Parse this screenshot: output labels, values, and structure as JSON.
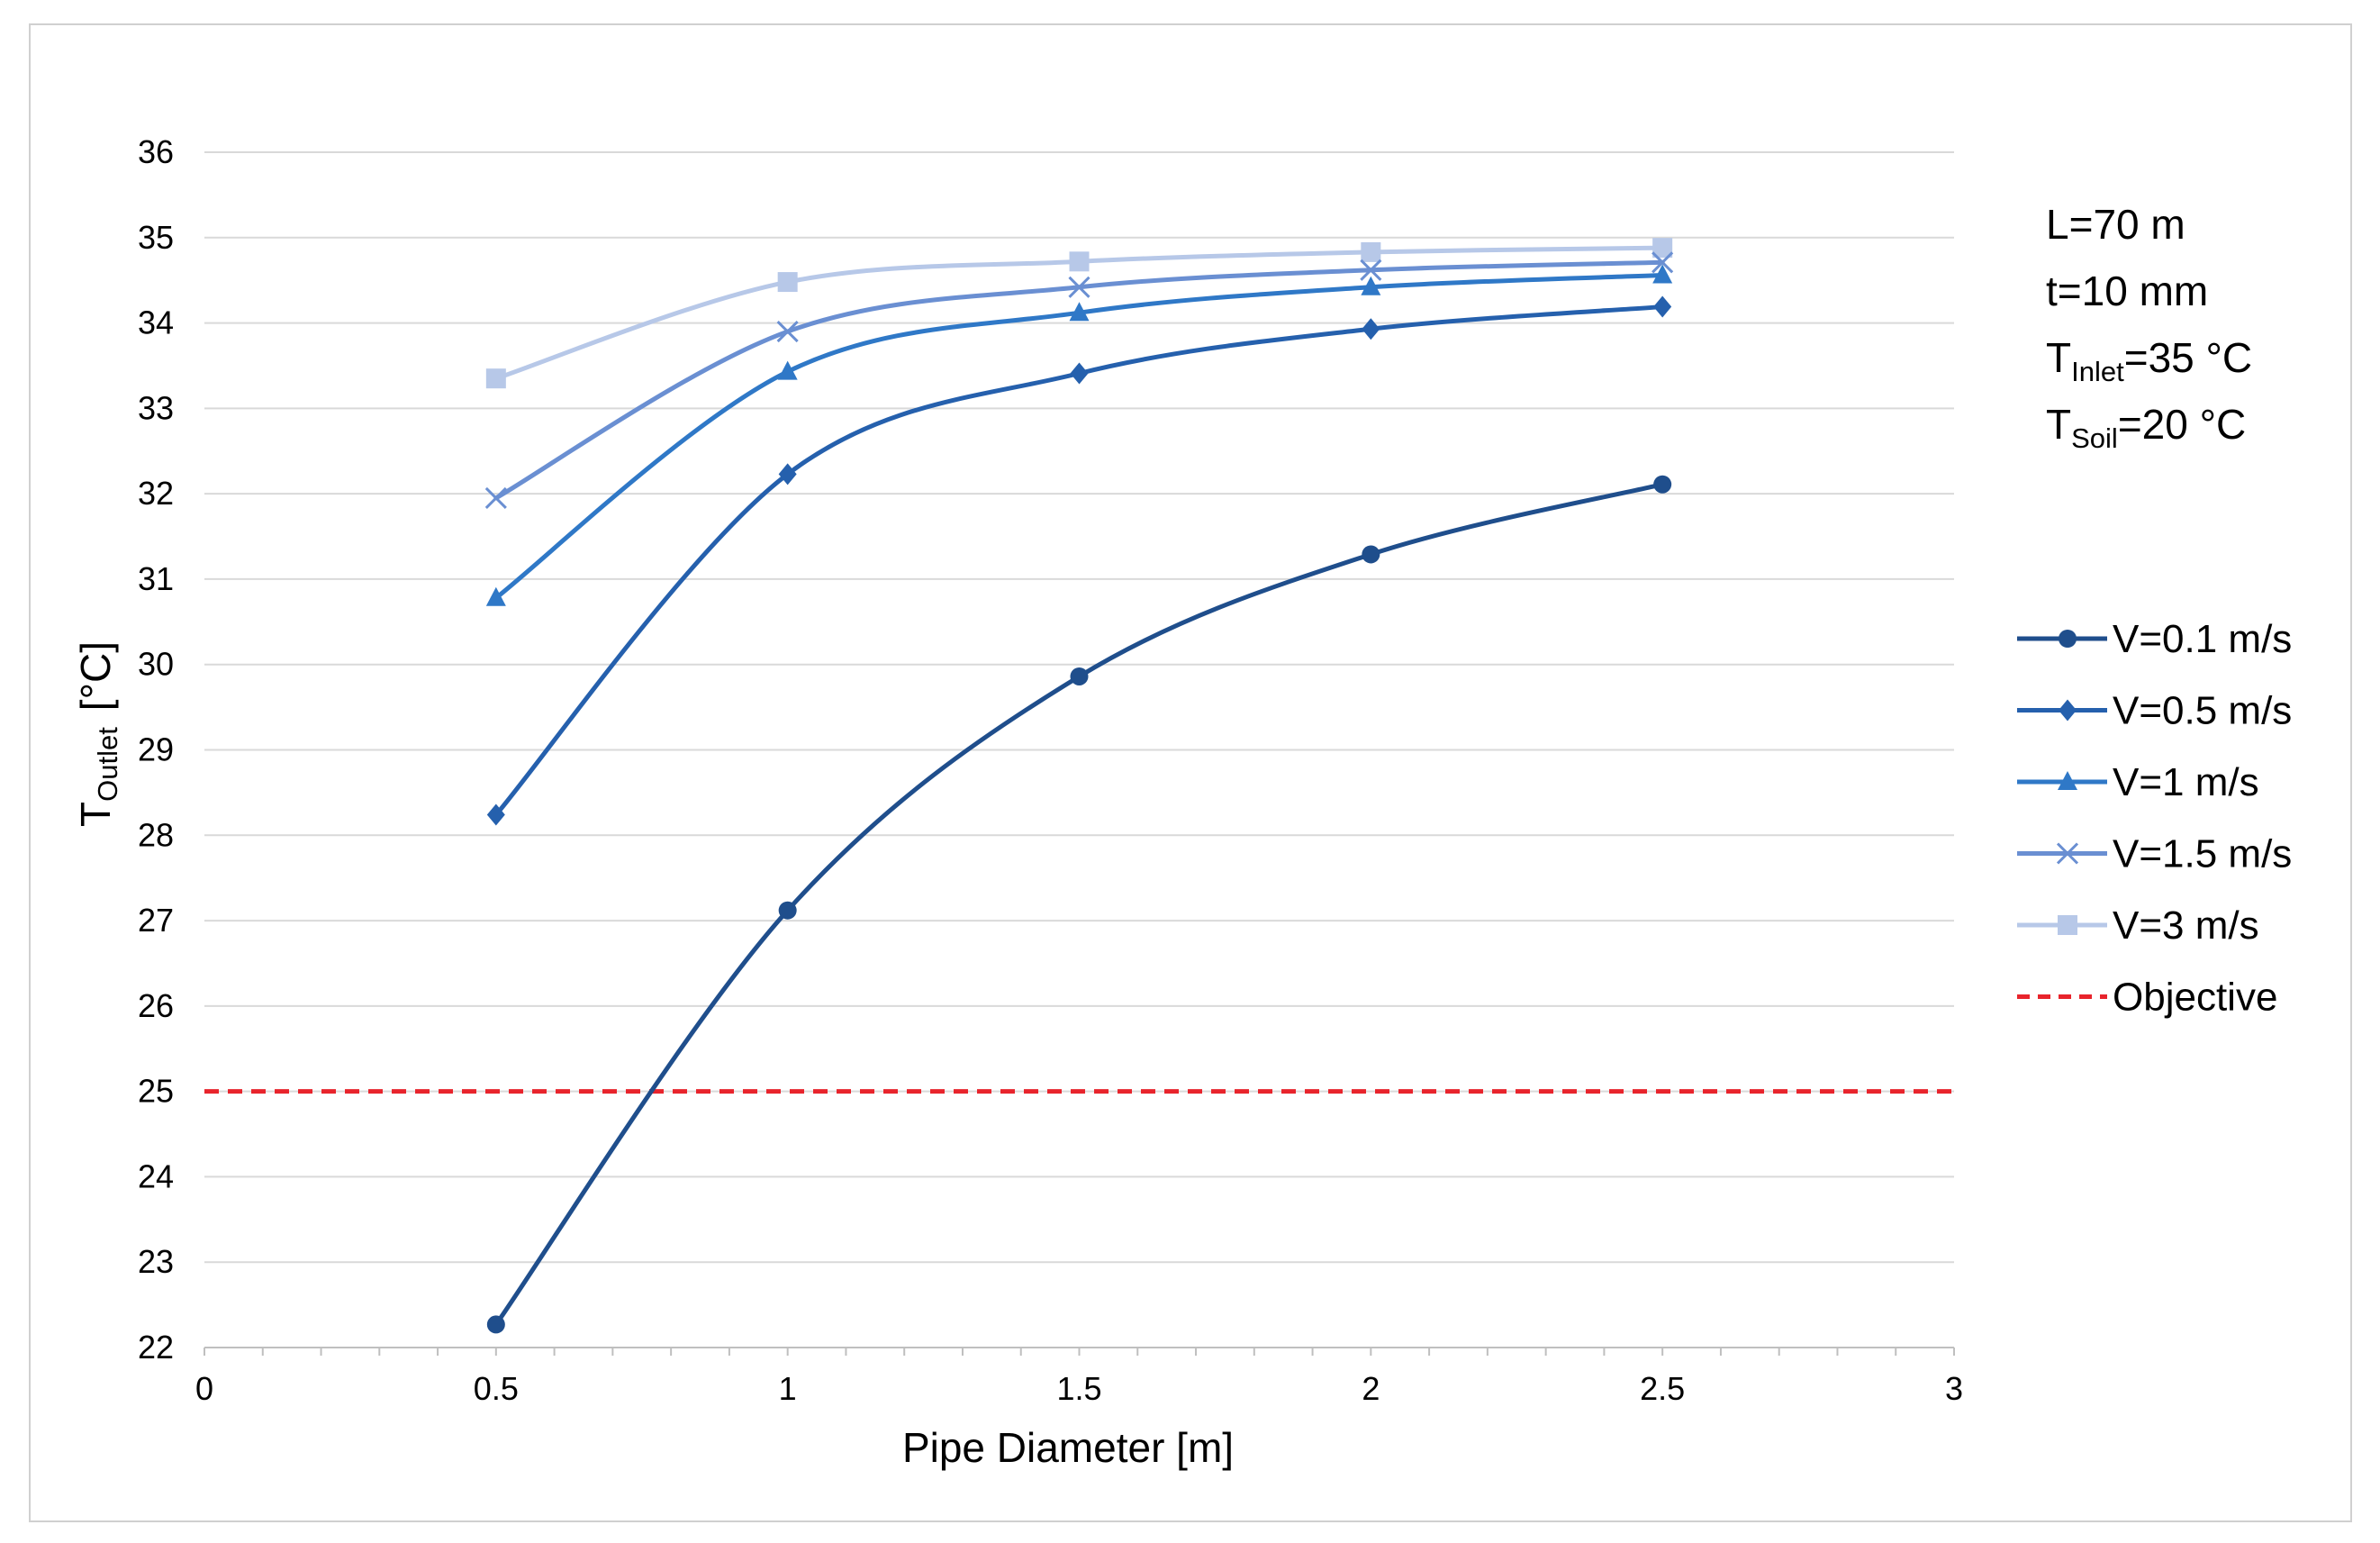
{
  "chart_data": {
    "type": "line",
    "title": "",
    "xlabel": "Pipe Diameter [m]",
    "ylabel": {
      "main": "T",
      "sub": "Outlet",
      "unit": "[°C]"
    },
    "xlim": [
      0,
      3
    ],
    "ylim": [
      22,
      36
    ],
    "xticks": [
      0,
      0.5,
      1,
      1.5,
      2,
      2.5,
      3
    ],
    "xtick_labels": [
      "0",
      "0.5",
      "1",
      "1.5",
      "2",
      "2.5",
      "3"
    ],
    "yticks": [
      22,
      23,
      24,
      25,
      26,
      27,
      28,
      29,
      30,
      31,
      32,
      33,
      34,
      35,
      36
    ],
    "ytick_labels": [
      "22",
      "23",
      "24",
      "25",
      "26",
      "27",
      "28",
      "29",
      "30",
      "31",
      "32",
      "33",
      "34",
      "35",
      "36"
    ],
    "grid": "horizontal",
    "legend_position": "right",
    "x": [
      0.5,
      1,
      1.5,
      2,
      2.5
    ],
    "series": [
      {
        "name": "V=0.1 m/s",
        "marker": "circle",
        "color": "#1f4e8c",
        "values": [
          22.27,
          27.12,
          29.86,
          31.29,
          32.11
        ]
      },
      {
        "name": "V=0.5 m/s",
        "marker": "diamond",
        "color": "#2560ad",
        "values": [
          28.24,
          32.23,
          33.41,
          33.93,
          34.19
        ]
      },
      {
        "name": "V=1 m/s",
        "marker": "triangle",
        "color": "#2f78c7",
        "values": [
          30.78,
          33.43,
          34.12,
          34.42,
          34.56
        ]
      },
      {
        "name": "V=1.5 m/s",
        "marker": "x",
        "color": "#6a8fd2",
        "values": [
          31.95,
          33.9,
          34.42,
          34.62,
          34.71
        ]
      },
      {
        "name": "V=3 m/s",
        "marker": "square",
        "color": "#b7c8e8",
        "values": [
          33.35,
          34.48,
          34.72,
          34.83,
          34.88
        ]
      }
    ],
    "reference_line": {
      "name": "Objective",
      "y": 25,
      "color": "#e8242c",
      "style": "dashed"
    },
    "annotations": {
      "length": "L=70 m",
      "thickness": "t=10 mm",
      "inlet": {
        "main": "T",
        "sub": "Inlet",
        "rest": "=35 °C"
      },
      "soil": {
        "main": "T",
        "sub": "Soil",
        "rest": "=20 °C"
      }
    }
  }
}
